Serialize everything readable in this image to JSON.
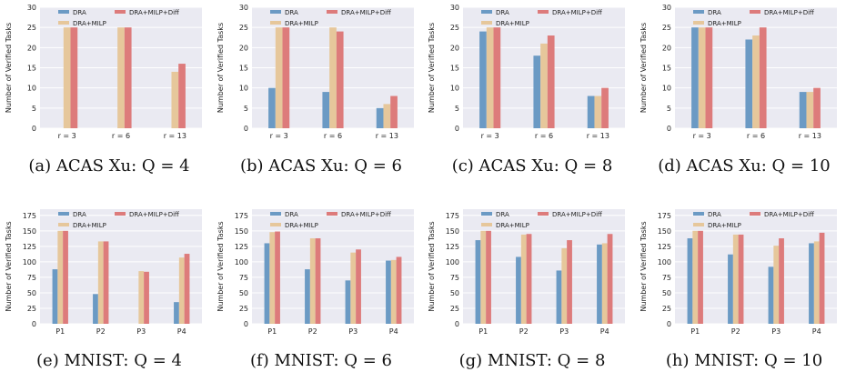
{
  "colors": {
    "DRA": "#6b9ac4",
    "DRA+MILP": "#e6c79b",
    "DRA+MILP+Diff": "#dd7b7b",
    "background": "#eaeaf2",
    "grid": "#ffffff"
  },
  "chart_data": [
    {
      "type": "bar",
      "caption": "(a) ACAS Xu: Q = 4",
      "categories": [
        "r = 3",
        "r = 6",
        "r = 13"
      ],
      "ylabel": "Number of Verified Tasks",
      "ylim": [
        0,
        30
      ],
      "yticks": [
        "0",
        "5",
        "10",
        "15",
        "20",
        "25",
        "30"
      ],
      "series": [
        {
          "name": "DRA",
          "values": [
            0,
            0,
            0
          ]
        },
        {
          "name": "DRA+MILP",
          "values": [
            25,
            25,
            14
          ]
        },
        {
          "name": "DRA+MILP+Diff",
          "values": [
            25,
            25,
            16
          ]
        }
      ],
      "legend": "top",
      "grid": true
    },
    {
      "type": "bar",
      "caption": "(b) ACAS Xu: Q = 6",
      "categories": [
        "r = 3",
        "r = 6",
        "r = 13"
      ],
      "ylabel": "Number of Verified Tasks",
      "ylim": [
        0,
        30
      ],
      "yticks": [
        "0",
        "5",
        "10",
        "15",
        "20",
        "25",
        "30"
      ],
      "series": [
        {
          "name": "DRA",
          "values": [
            10,
            9,
            5
          ]
        },
        {
          "name": "DRA+MILP",
          "values": [
            25,
            25,
            6
          ]
        },
        {
          "name": "DRA+MILP+Diff",
          "values": [
            25,
            24,
            8
          ]
        }
      ],
      "legend": "top",
      "grid": true
    },
    {
      "type": "bar",
      "caption": "(c) ACAS Xu: Q = 8",
      "categories": [
        "r = 3",
        "r = 6",
        "r = 13"
      ],
      "ylabel": "Number of Verified Tasks",
      "ylim": [
        0,
        30
      ],
      "yticks": [
        "0",
        "5",
        "10",
        "15",
        "20",
        "25",
        "30"
      ],
      "series": [
        {
          "name": "DRA",
          "values": [
            24,
            18,
            8
          ]
        },
        {
          "name": "DRA+MILP",
          "values": [
            25,
            21,
            8
          ]
        },
        {
          "name": "DRA+MILP+Diff",
          "values": [
            25,
            23,
            10
          ]
        }
      ],
      "legend": "top",
      "grid": true
    },
    {
      "type": "bar",
      "caption": "(d) ACAS Xu: Q = 10",
      "categories": [
        "r = 3",
        "r = 6",
        "r = 13"
      ],
      "ylabel": "Number of Verified Tasks",
      "ylim": [
        0,
        30
      ],
      "yticks": [
        "0",
        "5",
        "10",
        "15",
        "20",
        "25",
        "30"
      ],
      "series": [
        {
          "name": "DRA",
          "values": [
            25,
            22,
            9
          ]
        },
        {
          "name": "DRA+MILP",
          "values": [
            25,
            23,
            9
          ]
        },
        {
          "name": "DRA+MILP+Diff",
          "values": [
            25,
            25,
            10
          ]
        }
      ],
      "legend": "top",
      "grid": true
    },
    {
      "type": "bar",
      "caption": "(e) MNIST: Q = 4",
      "categories": [
        "P1",
        "P2",
        "P3",
        "P4"
      ],
      "ylabel": "Number of Verified Tasks",
      "ylim": [
        0,
        185
      ],
      "yticks": [
        "0",
        "25",
        "50",
        "75",
        "100",
        "125",
        "150",
        "175"
      ],
      "series": [
        {
          "name": "DRA",
          "values": [
            88,
            48,
            0,
            35
          ]
        },
        {
          "name": "DRA+MILP",
          "values": [
            150,
            133,
            85,
            107
          ]
        },
        {
          "name": "DRA+MILP+Diff",
          "values": [
            150,
            133,
            84,
            113
          ]
        }
      ],
      "legend": "top",
      "grid": true
    },
    {
      "type": "bar",
      "caption": "(f) MNIST: Q = 6",
      "categories": [
        "P1",
        "P2",
        "P3",
        "P4"
      ],
      "ylabel": "Number of Verified Tasks",
      "ylim": [
        0,
        185
      ],
      "yticks": [
        "0",
        "25",
        "50",
        "75",
        "100",
        "125",
        "150",
        "175"
      ],
      "series": [
        {
          "name": "DRA",
          "values": [
            130,
            88,
            70,
            102
          ]
        },
        {
          "name": "DRA+MILP",
          "values": [
            148,
            138,
            115,
            103
          ]
        },
        {
          "name": "DRA+MILP+Diff",
          "values": [
            149,
            138,
            120,
            108
          ]
        }
      ],
      "legend": "top",
      "grid": true
    },
    {
      "type": "bar",
      "caption": "(g) MNIST: Q = 8",
      "categories": [
        "P1",
        "P2",
        "P3",
        "P4"
      ],
      "ylabel": "Number of Verified Tasks",
      "ylim": [
        0,
        185
      ],
      "yticks": [
        "0",
        "25",
        "50",
        "75",
        "100",
        "125",
        "150",
        "175"
      ],
      "series": [
        {
          "name": "DRA",
          "values": [
            135,
            108,
            86,
            128
          ]
        },
        {
          "name": "DRA+MILP",
          "values": [
            150,
            144,
            122,
            130
          ]
        },
        {
          "name": "DRA+MILP+Diff",
          "values": [
            150,
            145,
            135,
            145
          ]
        }
      ],
      "legend": "top",
      "grid": true
    },
    {
      "type": "bar",
      "caption": "(h) MNIST: Q = 10",
      "categories": [
        "P1",
        "P2",
        "P3",
        "P4"
      ],
      "ylabel": "Number of Verified Tasks",
      "ylim": [
        0,
        185
      ],
      "yticks": [
        "0",
        "25",
        "50",
        "75",
        "100",
        "125",
        "150",
        "175"
      ],
      "series": [
        {
          "name": "DRA",
          "values": [
            138,
            112,
            92,
            130
          ]
        },
        {
          "name": "DRA+MILP",
          "values": [
            150,
            144,
            126,
            133
          ]
        },
        {
          "name": "DRA+MILP+Diff",
          "values": [
            150,
            144,
            138,
            147
          ]
        }
      ],
      "legend": "top",
      "grid": true
    }
  ]
}
